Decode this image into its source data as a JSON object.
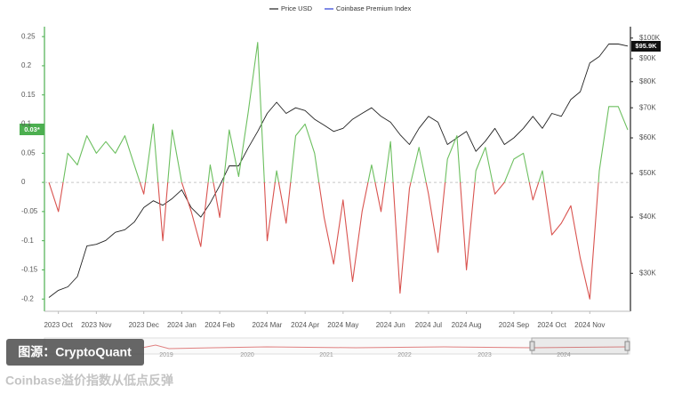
{
  "chart_data": {
    "type": "line",
    "categories": [
      null,
      "2023 Oct",
      null,
      null,
      null,
      "2023 Nov",
      null,
      null,
      null,
      null,
      "2023 Dec",
      null,
      null,
      null,
      "2024 Jan",
      null,
      null,
      null,
      "2024 Feb",
      null,
      null,
      null,
      null,
      "2024 Mar",
      null,
      null,
      null,
      "2024 Apr",
      null,
      null,
      null,
      "2024 May",
      null,
      null,
      null,
      null,
      "2024 Jun",
      null,
      null,
      null,
      "2024 Jul",
      null,
      null,
      null,
      "2024 Aug",
      null,
      null,
      null,
      null,
      "2024 Sep",
      null,
      null,
      null,
      "2024 Oct",
      null,
      null,
      null,
      "2024 Nov",
      null,
      null,
      null,
      null
    ],
    "series": [
      {
        "name": "Price USD",
        "color": "#222222",
        "axis": "y2",
        "values": [
          26500,
          27500,
          28000,
          29500,
          34500,
          34800,
          35500,
          37000,
          37500,
          39000,
          42000,
          43500,
          42500,
          44000,
          46000,
          42000,
          40000,
          43000,
          47000,
          52000,
          52000,
          57000,
          62000,
          68000,
          72000,
          68000,
          70000,
          69000,
          66000,
          64000,
          62000,
          63000,
          66000,
          68000,
          70000,
          67000,
          65000,
          61000,
          58000,
          63000,
          67000,
          65000,
          58000,
          60000,
          62000,
          56000,
          59000,
          63000,
          58000,
          60000,
          63000,
          67000,
          63000,
          68000,
          67000,
          73000,
          76000,
          88000,
          91000,
          97000,
          97000,
          96000
        ]
      },
      {
        "name": "Coinbase Premium Index",
        "color": "#2a3cd6",
        "positive_color": "#6cbf5f",
        "negative_color": "#d9534f",
        "values": [
          0.0,
          -0.05,
          0.05,
          0.03,
          0.08,
          0.05,
          0.07,
          0.05,
          0.08,
          0.03,
          -0.02,
          0.1,
          -0.1,
          0.09,
          0.0,
          -0.05,
          -0.11,
          0.03,
          -0.06,
          0.09,
          0.01,
          0.12,
          0.24,
          -0.1,
          0.02,
          -0.07,
          0.08,
          0.1,
          0.05,
          -0.06,
          -0.14,
          -0.03,
          -0.17,
          -0.05,
          0.03,
          -0.05,
          0.07,
          -0.19,
          -0.01,
          0.06,
          -0.02,
          -0.12,
          0.04,
          0.08,
          -0.15,
          0.02,
          0.06,
          -0.02,
          0.0,
          0.04,
          0.05,
          -0.03,
          0.02,
          -0.09,
          -0.07,
          -0.04,
          -0.13,
          -0.2,
          0.02,
          0.13,
          0.13,
          0.09
        ]
      }
    ],
    "ylim": [
      -0.221,
      0.267
    ],
    "yticks": [
      0.25,
      0.2,
      0.15,
      0.1,
      0.05,
      0,
      -0.05,
      -0.1,
      -0.15,
      -0.2
    ],
    "y2lim": [
      24700,
      106000
    ],
    "y2log": true,
    "y2ticks": [
      {
        "value": 100000,
        "label": "$100K"
      },
      {
        "value": 90000,
        "label": "$90K"
      },
      {
        "value": 80000,
        "label": "$80K"
      },
      {
        "value": 70000,
        "label": "$70K"
      },
      {
        "value": 60000,
        "label": "$60K"
      },
      {
        "value": 50000,
        "label": "$50K"
      },
      {
        "value": 40000,
        "label": "$40K"
      },
      {
        "value": 30000,
        "label": "$30K"
      }
    ],
    "last_price_label": {
      "value": 95900,
      "label": "$95.9K"
    },
    "premium_badge": "0.03*",
    "navigator_labels": [
      "2019",
      "2020",
      "2021",
      "2022",
      "2023",
      "2024"
    ],
    "source": "图源：CryptoQuant",
    "caption": "Coinbase溢价指数从低点反弹"
  }
}
